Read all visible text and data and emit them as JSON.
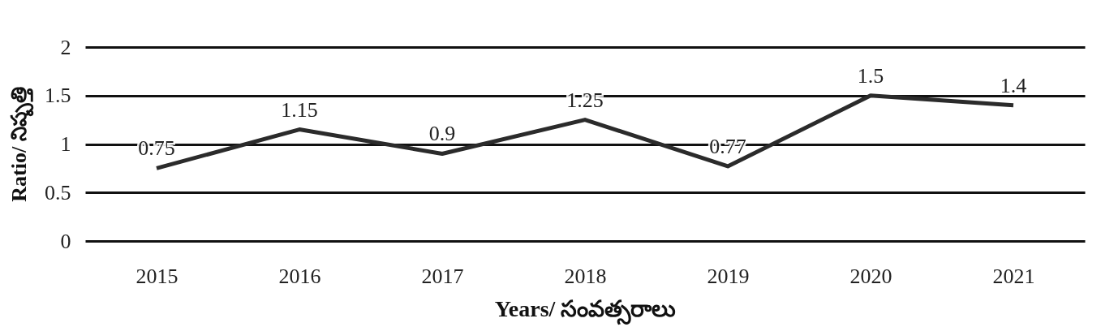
{
  "chart_data": {
    "type": "line",
    "xlabel": "Years/ సంవత్సరాలు",
    "ylabel": "Ratio/ నిష్పత్తి",
    "categories": [
      "2015",
      "2016",
      "2017",
      "2018",
      "2019",
      "2020",
      "2021"
    ],
    "series": [
      {
        "color": "#2b2b2b",
        "values": [
          0.75,
          1.15,
          0.9,
          1.25,
          0.77,
          1.5,
          1.4
        ]
      }
    ],
    "ylim": [
      0,
      2
    ],
    "yticks": [
      0,
      0.5,
      1,
      1.5,
      2
    ],
    "grid": "y",
    "data_labels": true,
    "legend": false,
    "marker": "none",
    "line_style": "solid"
  }
}
